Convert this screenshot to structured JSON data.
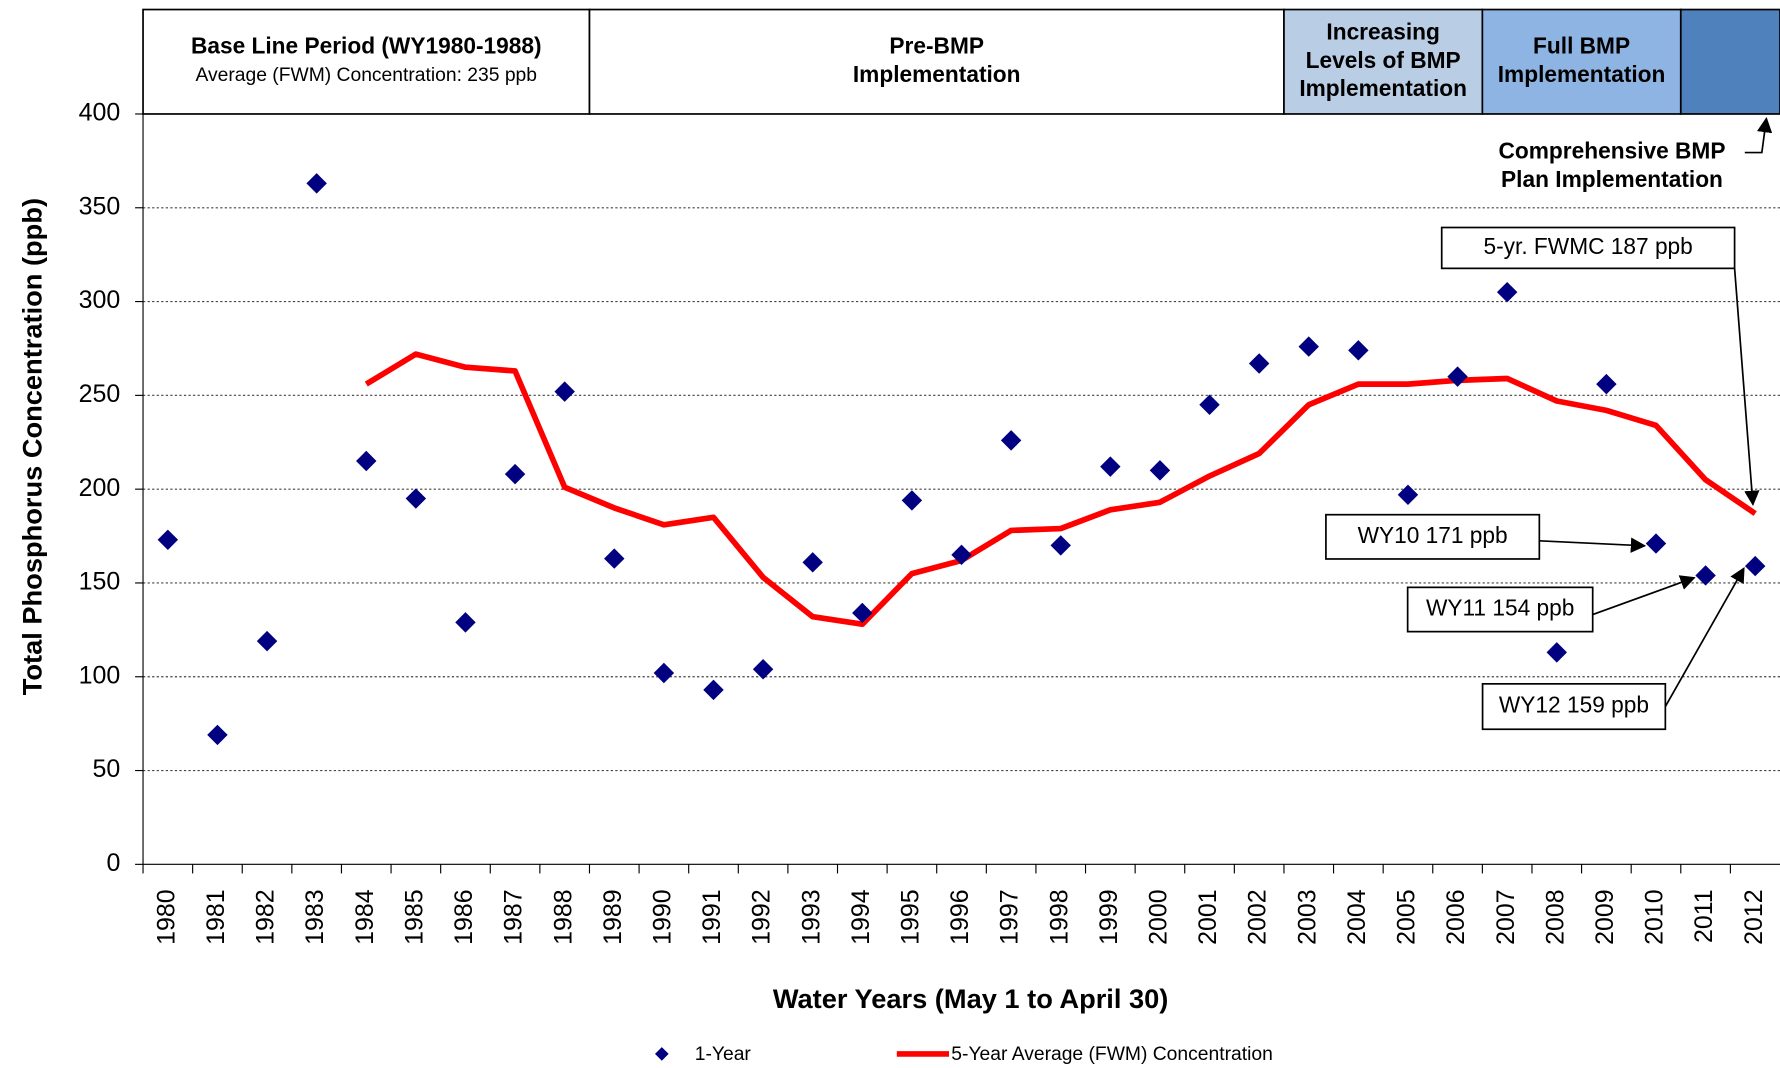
{
  "chart_data": {
    "type": "scatter",
    "x_label": "Water Years (May 1 to April 30)",
    "y_label": "Total Phosphorus Concentration (ppb)",
    "categories": [
      "1980",
      "1981",
      "1982",
      "1983",
      "1984",
      "1985",
      "1986",
      "1987",
      "1988",
      "1989",
      "1990",
      "1991",
      "1992",
      "1993",
      "1994",
      "1995",
      "1996",
      "1997",
      "1998",
      "1999",
      "2000",
      "2001",
      "2002",
      "2003",
      "2004",
      "2005",
      "2006",
      "2007",
      "2008",
      "2009",
      "2010",
      "2011",
      "2012"
    ],
    "series": [
      {
        "name": "1-Year",
        "type": "scatter",
        "color": "#000080",
        "values": [
          173,
          69,
          119,
          363,
          215,
          195,
          129,
          208,
          252,
          163,
          102,
          93,
          104,
          161,
          134,
          194,
          165,
          226,
          170,
          212,
          210,
          245,
          267,
          276,
          274,
          197,
          260,
          305,
          113,
          256,
          171,
          154,
          159
        ]
      },
      {
        "name": "5-Year Average (FWM) Concentration",
        "type": "line",
        "color": "#ff0000",
        "values": [
          null,
          null,
          null,
          null,
          256,
          272,
          265,
          263,
          201,
          190,
          181,
          185,
          153,
          132,
          128,
          155,
          162,
          178,
          179,
          189,
          193,
          207,
          219,
          245,
          256,
          256,
          258,
          259,
          247,
          242,
          234,
          205,
          187
        ]
      }
    ],
    "ylim": [
      0,
      400
    ],
    "yticks": [
      0,
      50,
      100,
      150,
      200,
      250,
      300,
      350,
      400
    ],
    "grid": true,
    "header_bands": [
      {
        "lines": [
          "Base Line Period (WY1980-1988)",
          "Average (FWM) Concentration:  235 ppb"
        ],
        "color": "#ffffff"
      },
      {
        "lines": [
          "Pre-BMP",
          "Implementation"
        ],
        "color": "#ffffff"
      },
      {
        "lines": [
          "Increasing",
          "Levels of BMP",
          "Implementation"
        ],
        "color": "#b9cde5"
      },
      {
        "lines": [
          "Full BMP",
          "Implementation"
        ],
        "color": "#8eb4e3"
      },
      {
        "lines": [],
        "color": "#4f81bd"
      }
    ],
    "band_note": [
      "Comprehensive BMP",
      "Plan Implementation"
    ],
    "callouts": [
      "5-yr. FWMC  187 ppb",
      "WY10 171 ppb",
      "WY11 154 ppb",
      "WY12 159 ppb"
    ]
  }
}
